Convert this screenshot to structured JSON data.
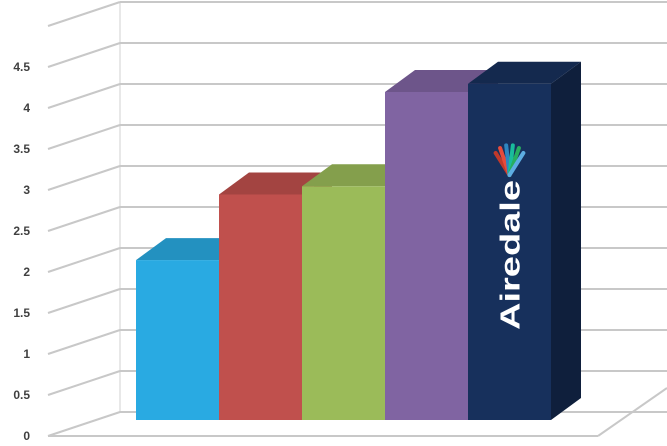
{
  "chart_data": {
    "type": "bar",
    "style": "3d-column",
    "title": "",
    "xlabel": "",
    "ylabel": "",
    "ylim": [
      0,
      5
    ],
    "yticks": [
      "0",
      "0.5",
      "1",
      "1.5",
      "2",
      "2.5",
      "3",
      "3.5",
      "4",
      "4.5"
    ],
    "grid": true,
    "legend": "none",
    "categories": [
      "",
      "",
      "",
      "",
      ""
    ],
    "values": [
      1.95,
      2.75,
      2.85,
      4.0,
      4.1
    ],
    "colors": [
      "#29aae2",
      "#c0504d",
      "#9bbb59",
      "#8064a2",
      "#17305c"
    ],
    "logo": {
      "text": "Airedale"
    }
  }
}
